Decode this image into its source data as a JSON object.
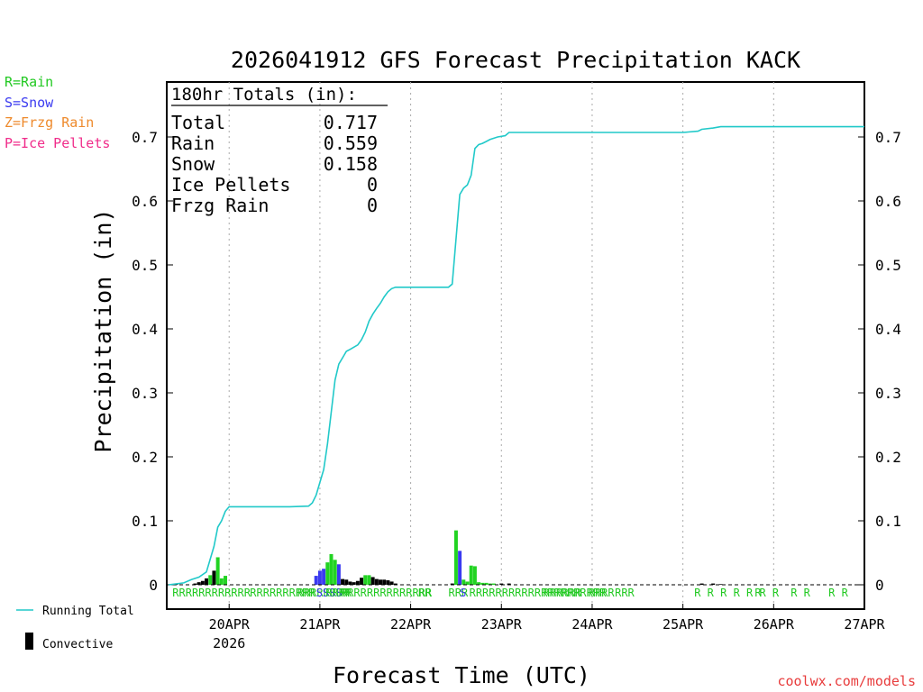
{
  "chart_data": {
    "type": "bar+line",
    "title": "2026041912 GFS Forecast Precipitation KACK",
    "xlabel": "Forecast Time (UTC)",
    "ylabel": "Precipitation (in)",
    "ylim": [
      0,
      0.78
    ],
    "yticks": [
      0,
      0.1,
      0.2,
      0.3,
      0.4,
      0.5,
      0.6,
      0.7
    ],
    "ytick_labels": [
      "0",
      "0.1",
      "0.2",
      "0.3",
      "0.4",
      "0.5",
      "0.6",
      "0.7"
    ],
    "xlim_hours": [
      -4.5,
      180
    ],
    "xticks": [
      {
        "hour": 12,
        "label": "20APR",
        "sublabel": "2026"
      },
      {
        "hour": 36,
        "label": "21APR"
      },
      {
        "hour": 60,
        "label": "22APR"
      },
      {
        "hour": 84,
        "label": "23APR"
      },
      {
        "hour": 108,
        "label": "24APR"
      },
      {
        "hour": 132,
        "label": "25APR"
      },
      {
        "hour": 156,
        "label": "26APR"
      },
      {
        "hour": 180,
        "label": "27APR"
      }
    ],
    "legend": [
      {
        "code": "R",
        "text": "R=Rain",
        "color": "#22c922"
      },
      {
        "code": "S",
        "text": "S=Snow",
        "color": "#3a3af0"
      },
      {
        "code": "Z",
        "text": "Z=Frzg Rain",
        "color": "#ee8a2c"
      },
      {
        "code": "P",
        "text": "P=Ice Pellets",
        "color": "#f02c8a"
      }
    ],
    "line_legend": "Running Total",
    "bar_legend": "Convective",
    "totals": {
      "header": "180hr Totals (in):",
      "rows": [
        {
          "label": "Total",
          "value": "0.717"
        },
        {
          "label": "Rain",
          "value": "0.559"
        },
        {
          "label": "Snow",
          "value": "0.158"
        },
        {
          "label": "Ice Pellets",
          "value": "0"
        },
        {
          "label": "Frzg Rain",
          "value": "0"
        }
      ]
    },
    "running_total": [
      [
        -4,
        0
      ],
      [
        0,
        0.003
      ],
      [
        2,
        0.008
      ],
      [
        4,
        0.012
      ],
      [
        6,
        0.02
      ],
      [
        7,
        0.04
      ],
      [
        8,
        0.06
      ],
      [
        9,
        0.09
      ],
      [
        10,
        0.1
      ],
      [
        11,
        0.115
      ],
      [
        12,
        0.122
      ],
      [
        14,
        0.122
      ],
      [
        20,
        0.122
      ],
      [
        28,
        0.122
      ],
      [
        33,
        0.123
      ],
      [
        34,
        0.128
      ],
      [
        35,
        0.14
      ],
      [
        36,
        0.16
      ],
      [
        37,
        0.18
      ],
      [
        38,
        0.22
      ],
      [
        39,
        0.27
      ],
      [
        40,
        0.32
      ],
      [
        41,
        0.345
      ],
      [
        42,
        0.355
      ],
      [
        43,
        0.365
      ],
      [
        44,
        0.368
      ],
      [
        46,
        0.375
      ],
      [
        47,
        0.383
      ],
      [
        48,
        0.395
      ],
      [
        49,
        0.412
      ],
      [
        50,
        0.423
      ],
      [
        51,
        0.432
      ],
      [
        52,
        0.44
      ],
      [
        53,
        0.45
      ],
      [
        54,
        0.458
      ],
      [
        55,
        0.463
      ],
      [
        56,
        0.465
      ],
      [
        60,
        0.465
      ],
      [
        70,
        0.465
      ],
      [
        71,
        0.47
      ],
      [
        72,
        0.54
      ],
      [
        73,
        0.61
      ],
      [
        74,
        0.62
      ],
      [
        75,
        0.625
      ],
      [
        76,
        0.64
      ],
      [
        77,
        0.682
      ],
      [
        78,
        0.688
      ],
      [
        79,
        0.69
      ],
      [
        80,
        0.693
      ],
      [
        81,
        0.696
      ],
      [
        83,
        0.7
      ],
      [
        85,
        0.702
      ],
      [
        86,
        0.707
      ],
      [
        90,
        0.707
      ],
      [
        110,
        0.707
      ],
      [
        130,
        0.707
      ],
      [
        132,
        0.707
      ],
      [
        136,
        0.709
      ],
      [
        137,
        0.712
      ],
      [
        140,
        0.714
      ],
      [
        142,
        0.716
      ],
      [
        150,
        0.716
      ],
      [
        160,
        0.716
      ],
      [
        170,
        0.716
      ],
      [
        180,
        0.716
      ]
    ],
    "bars": [
      {
        "hour": -2,
        "value": 0.001,
        "color": "#000000"
      },
      {
        "hour": 3,
        "value": 0.002,
        "color": "#000000"
      },
      {
        "hour": 4,
        "value": 0.004,
        "color": "#000000"
      },
      {
        "hour": 5,
        "value": 0.006,
        "color": "#000000"
      },
      {
        "hour": 6,
        "value": 0.01,
        "color": "#000000"
      },
      {
        "hour": 7,
        "value": 0.015,
        "color": "#22d322"
      },
      {
        "hour": 8,
        "value": 0.022,
        "color": "#000000"
      },
      {
        "hour": 9,
        "value": 0.043,
        "color": "#22d322"
      },
      {
        "hour": 10,
        "value": 0.01,
        "color": "#22d322"
      },
      {
        "hour": 11,
        "value": 0.014,
        "color": "#22d322"
      },
      {
        "hour": 35,
        "value": 0.014,
        "color": "#3a3af0"
      },
      {
        "hour": 36,
        "value": 0.022,
        "color": "#3a3af0"
      },
      {
        "hour": 37,
        "value": 0.025,
        "color": "#3a3af0"
      },
      {
        "hour": 38,
        "value": 0.035,
        "color": "#22d322"
      },
      {
        "hour": 39,
        "value": 0.048,
        "color": "#22d322"
      },
      {
        "hour": 40,
        "value": 0.039,
        "color": "#22d322"
      },
      {
        "hour": 41,
        "value": 0.032,
        "color": "#3a3af0"
      },
      {
        "hour": 42,
        "value": 0.009,
        "color": "#000000"
      },
      {
        "hour": 43,
        "value": 0.008,
        "color": "#000000"
      },
      {
        "hour": 44,
        "value": 0.005,
        "color": "#000000"
      },
      {
        "hour": 45,
        "value": 0.004,
        "color": "#000000"
      },
      {
        "hour": 46,
        "value": 0.006,
        "color": "#000000"
      },
      {
        "hour": 47,
        "value": 0.011,
        "color": "#000000"
      },
      {
        "hour": 48,
        "value": 0.015,
        "color": "#22d322"
      },
      {
        "hour": 49,
        "value": 0.015,
        "color": "#22d322"
      },
      {
        "hour": 50,
        "value": 0.012,
        "color": "#000000"
      },
      {
        "hour": 51,
        "value": 0.009,
        "color": "#000000"
      },
      {
        "hour": 52,
        "value": 0.008,
        "color": "#000000"
      },
      {
        "hour": 53,
        "value": 0.008,
        "color": "#000000"
      },
      {
        "hour": 54,
        "value": 0.007,
        "color": "#000000"
      },
      {
        "hour": 55,
        "value": 0.005,
        "color": "#000000"
      },
      {
        "hour": 56,
        "value": 0.002,
        "color": "#000000"
      },
      {
        "hour": 71,
        "value": 0.002,
        "color": "#000000"
      },
      {
        "hour": 72,
        "value": 0.085,
        "color": "#22d322"
      },
      {
        "hour": 73,
        "value": 0.053,
        "color": "#3a3af0"
      },
      {
        "hour": 74,
        "value": 0.008,
        "color": "#22d322"
      },
      {
        "hour": 75,
        "value": 0.005,
        "color": "#22d322"
      },
      {
        "hour": 76,
        "value": 0.03,
        "color": "#22d322"
      },
      {
        "hour": 77,
        "value": 0.029,
        "color": "#22d322"
      },
      {
        "hour": 78,
        "value": 0.004,
        "color": "#22d322"
      },
      {
        "hour": 79,
        "value": 0.003,
        "color": "#22d322"
      },
      {
        "hour": 80,
        "value": 0.003,
        "color": "#22d322"
      },
      {
        "hour": 81,
        "value": 0.002,
        "color": "#22d322"
      },
      {
        "hour": 82,
        "value": 0.002,
        "color": "#22d322"
      },
      {
        "hour": 84,
        "value": 0.002,
        "color": "#000000"
      },
      {
        "hour": 86,
        "value": 0.002,
        "color": "#000000"
      },
      {
        "hour": 137,
        "value": 0.002,
        "color": "#000000"
      },
      {
        "hour": 140,
        "value": 0.002,
        "color": "#000000"
      },
      {
        "hour": 142,
        "value": 0.001,
        "color": "#000000"
      }
    ],
    "ptype_labels": [
      {
        "hour": -3,
        "text": "RRRRRRRRRRRR",
        "color": "#22c922"
      },
      {
        "hour": 17.5,
        "text": "RRRRRRRRRR",
        "color": "#22c922"
      },
      {
        "hour": 30,
        "text": "RRRRRRRR",
        "color": "#22c922"
      },
      {
        "hour": 35,
        "text": "SSSS",
        "color": "#3a3af0",
        "row": 1
      },
      {
        "hour": 37.5,
        "text": "RRRR",
        "color": "#22c922"
      },
      {
        "hour": 41.5,
        "text": "RRRRRRRRRRRRRR",
        "color": "#22c922"
      },
      {
        "hour": 62,
        "text": "RR",
        "color": "#22c922"
      },
      {
        "hour": 70,
        "text": "RRR",
        "color": "#22c922"
      },
      {
        "hour": 73,
        "text": "S",
        "color": "#3a3af0",
        "row": 1
      },
      {
        "hour": 75.5,
        "text": "RRRRRRRRRRRRRRRRRRRRR",
        "color": "#22c922"
      },
      {
        "hour": 95,
        "text": "RRR",
        "color": "#22c922"
      },
      {
        "hour": 100,
        "text": "RRR",
        "color": "#22c922"
      },
      {
        "hour": 107,
        "text": "RRRR",
        "color": "#22c922"
      },
      {
        "hour": 114,
        "text": "RRR",
        "color": "#22c922"
      },
      {
        "hour": 135,
        "text": "R R R R R R R",
        "color": "#22c922"
      },
      {
        "hour": 151,
        "text": "R",
        "color": "#22c922"
      },
      {
        "hour": 160.5,
        "text": "R R",
        "color": "#22c922"
      },
      {
        "hour": 170.5,
        "text": "R R",
        "color": "#22c922"
      }
    ]
  },
  "colors": {
    "running_total_line": "#21c9c9",
    "frame": "#000000",
    "gridline": "#aaaaaa",
    "watermark": "#e83c3c"
  },
  "watermark": "coolwx.com/models"
}
